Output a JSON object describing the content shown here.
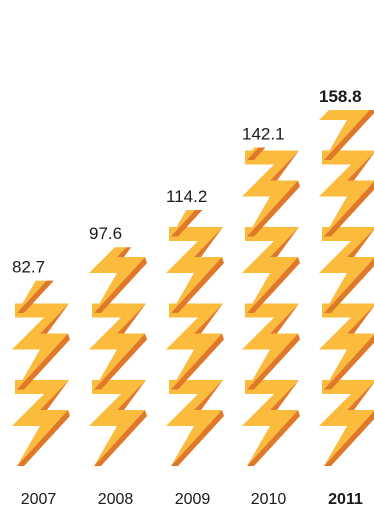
{
  "chart_data": {
    "type": "bar",
    "categories": [
      "2007",
      "2008",
      "2009",
      "2010",
      "2011"
    ],
    "values": [
      82.7,
      97.6,
      114.2,
      142.1,
      158.8
    ],
    "value_labels": [
      "82.7",
      "97.6",
      "114.2",
      "142.1",
      "158.8"
    ],
    "highlight_index": 4,
    "ylim": [
      0,
      158.8
    ],
    "grid": false,
    "legend": "none",
    "icon": "lightning-bolt-icon",
    "colors": {
      "bolt_light": "#fbbb3c",
      "bolt_dark": "#e0782a",
      "text": "#1a1a1a"
    }
  }
}
